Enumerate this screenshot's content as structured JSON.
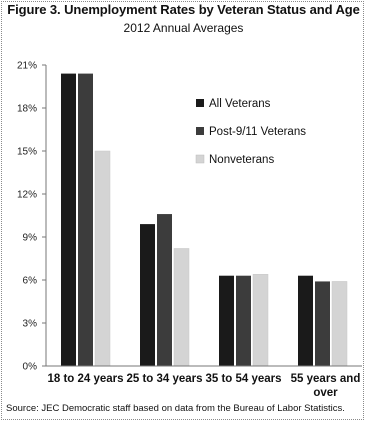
{
  "chart_data": {
    "type": "bar",
    "title": "Figure 3. Unemployment Rates by Veteran Status and Age",
    "subtitle": "2012 Annual Averages",
    "source": "Source: JEC Democratic staff based on data from the Bureau of Labor Statistics.",
    "categories": [
      "18 to 24 years",
      "25 to 34 years",
      "35 to 54 years",
      "55 years and over"
    ],
    "series": [
      {
        "name": "All Veterans",
        "color": "#1a1a1a",
        "values": [
          20.4,
          9.9,
          6.3,
          6.3
        ]
      },
      {
        "name": "Post-9/11 Veterans",
        "color": "#3c3c3c",
        "values": [
          20.4,
          10.6,
          6.3,
          5.9
        ]
      },
      {
        "name": "Nonveterans",
        "color": "#d4d4d4",
        "values": [
          15.0,
          8.2,
          6.4,
          5.9
        ]
      }
    ],
    "yticks": [
      "0%",
      "3%",
      "6%",
      "9%",
      "12%",
      "15%",
      "18%",
      "21%"
    ],
    "ylim": [
      0,
      21
    ],
    "grid": false,
    "legend_position": "right"
  }
}
